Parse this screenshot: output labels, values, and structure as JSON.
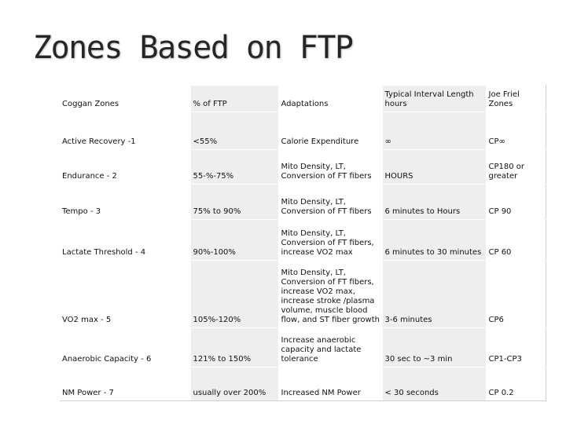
{
  "slide": {
    "title": "Zones Based on FTP"
  },
  "table": {
    "headers": [
      "Coggan Zones",
      "% of FTP",
      "Adaptations",
      "Typical Interval Length\nhours",
      "Joe Friel Zones"
    ],
    "rows": [
      [
        "Active Recovery -1",
        "<55%",
        "Calorie Expenditure",
        "∞",
        "CP∞"
      ],
      [
        "Endurance - 2",
        "55-%-75%",
        "Mito Density, LT,\nConversion of FT fibers",
        "HOURS",
        "CP180  or\ngreater"
      ],
      [
        "Tempo - 3",
        "75% to 90%",
        "Mito Density, LT,\nConversion of FT fibers",
        "6 minutes to Hours",
        "CP 90"
      ],
      [
        "Lactate Threshold - 4",
        "90%-100%",
        "Mito Density, LT,\nConversion of FT fibers,\nincrease VO2 max",
        "6 minutes to 30 minutes",
        "CP 60"
      ],
      [
        "VO2 max - 5",
        "105%-120%",
        "Mito Density, LT,\nConversion of FT fibers,\nincrease VO2 max,\nincrease  stroke /plasma\nvolume,  muscle blood\nflow, and  ST fiber growth",
        "3-6 minutes",
        "CP6"
      ],
      [
        "Anaerobic Capacity - 6",
        "121% to 150%",
        "Increase anaerobic\ncapacity and lactate\ntolerance",
        "30 sec to ~3 min",
        "CP1-CP3"
      ],
      [
        "NM Power - 7",
        "usually over 200%",
        "Increased NM Power",
        "< 30 seconds",
        "CP 0.2"
      ]
    ]
  },
  "colors": {
    "alternate_column_fill": "#eeeeee",
    "title_color": "#262626"
  }
}
